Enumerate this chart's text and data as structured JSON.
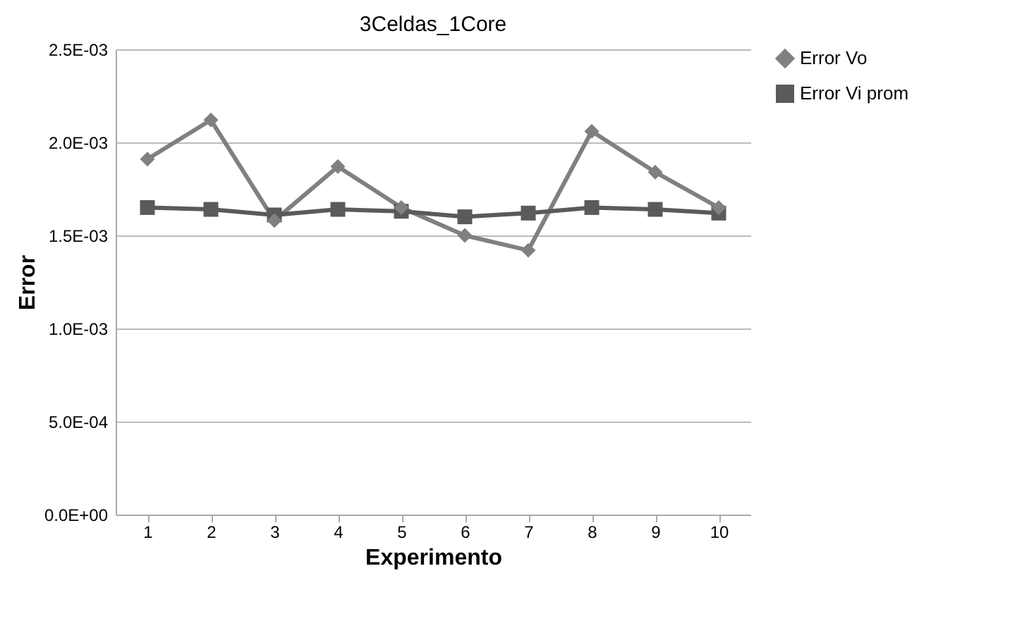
{
  "chart_data": {
    "type": "line",
    "title": "3Celdas_1Core",
    "xlabel": "Experimento",
    "ylabel": "Error",
    "categories": [
      "1",
      "2",
      "3",
      "4",
      "5",
      "6",
      "7",
      "8",
      "9",
      "10"
    ],
    "series": [
      {
        "name": "Error Vo",
        "color": "#808080",
        "marker": "diamond",
        "values": [
          0.00191,
          0.00212,
          0.00158,
          0.00187,
          0.00165,
          0.0015,
          0.00142,
          0.00206,
          0.00184,
          0.00165
        ]
      },
      {
        "name": "Error Vi prom",
        "color": "#5a5a5a",
        "marker": "square",
        "values": [
          0.00165,
          0.00164,
          0.00161,
          0.00164,
          0.00163,
          0.0016,
          0.00162,
          0.00165,
          0.00164,
          0.00162
        ]
      }
    ],
    "ylim": [
      0,
      0.0025
    ],
    "yticks": [
      {
        "value": 0,
        "label": "0.0E+00"
      },
      {
        "value": 0.0005,
        "label": "5.0E-04"
      },
      {
        "value": 0.001,
        "label": "1.0E-03"
      },
      {
        "value": 0.0015,
        "label": "1.5E-03"
      },
      {
        "value": 0.002,
        "label": "2.0E-03"
      },
      {
        "value": 0.0025,
        "label": "2.5E-03"
      }
    ],
    "grid": "y",
    "legend": "right",
    "line_style": "solid"
  }
}
